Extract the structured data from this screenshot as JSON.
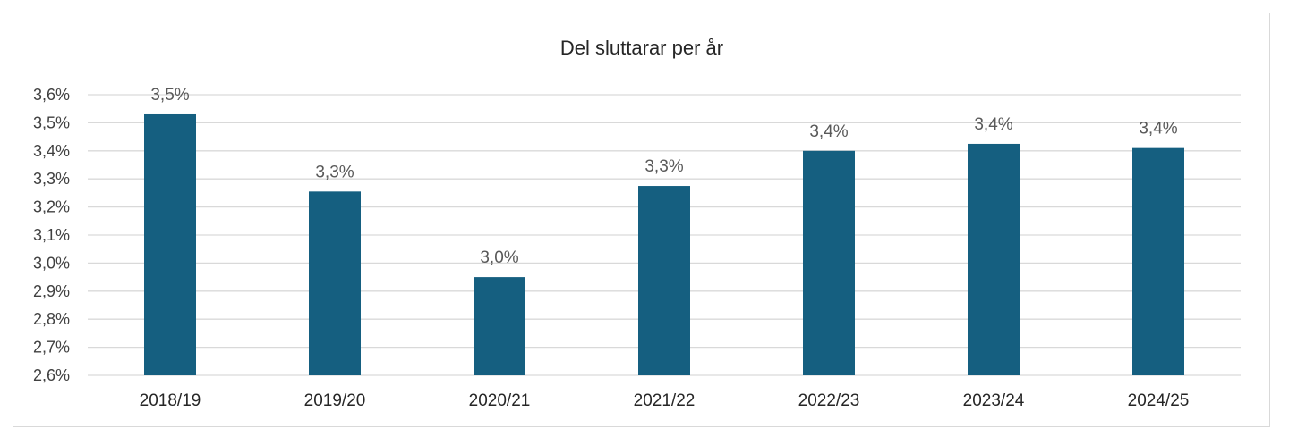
{
  "chart_data": {
    "type": "bar",
    "title": "Del sluttarar per år",
    "xlabel": "",
    "ylabel": "",
    "categories": [
      "2018/19",
      "2019/20",
      "2020/21",
      "2021/22",
      "2022/23",
      "2023/24",
      "2024/25"
    ],
    "values": [
      3.53,
      3.255,
      2.95,
      3.275,
      3.4,
      3.425,
      3.41
    ],
    "data_labels": [
      "3,5%",
      "3,3%",
      "3,0%",
      "3,3%",
      "3,4%",
      "3,4%",
      "3,4%"
    ],
    "ylim": [
      2.6,
      3.6
    ],
    "y_ticks": [
      2.6,
      2.7,
      2.8,
      2.9,
      3.0,
      3.1,
      3.2,
      3.3,
      3.4,
      3.5,
      3.6
    ],
    "y_tick_labels": [
      "2,6%",
      "2,7%",
      "2,8%",
      "2,9%",
      "3,0%",
      "3,1%",
      "3,2%",
      "3,3%",
      "3,4%",
      "3,5%",
      "3,6%"
    ],
    "grid": true,
    "legend": "none",
    "bar_color": "#155f80"
  }
}
